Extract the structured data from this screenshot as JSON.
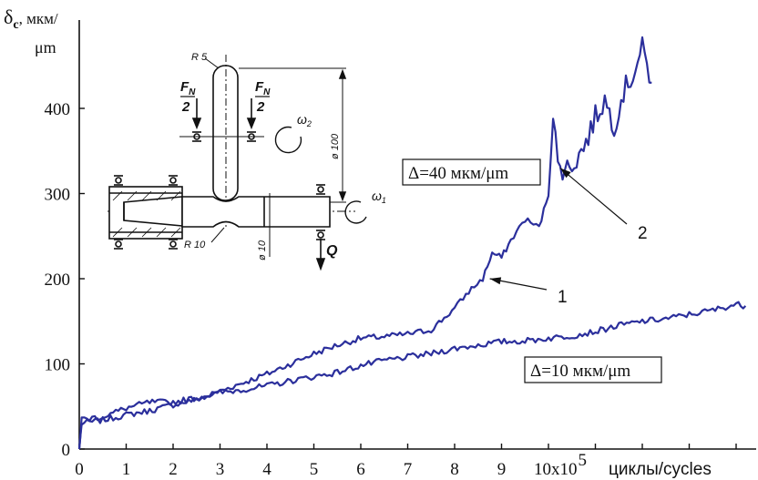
{
  "chart_data": {
    "type": "line",
    "ylabel": {
      "symbol": "δ",
      "subscript": "c",
      "unit_top": ", мкм/",
      "unit_bottom": "μm"
    },
    "xlabel": "циклы/cycles",
    "x_tick_labels": [
      "0",
      "1",
      "2",
      "3",
      "4",
      "5",
      "6",
      "7",
      "8",
      "9",
      "10x10"
    ],
    "x_power_label": "5",
    "xlim": [
      0,
      14.2
    ],
    "ylim": [
      0,
      470
    ],
    "y_ticks": [
      0,
      100,
      200,
      300,
      400
    ],
    "grid": false,
    "series": [
      {
        "name": "Δ=40 мкм/μm",
        "curve_label": "2",
        "color": "#2b2f9c",
        "x": [
          0,
          0.05,
          0.5,
          1,
          1.5,
          2,
          2.5,
          3,
          3.5,
          4,
          4.5,
          5,
          5.5,
          6,
          6.5,
          7,
          7.5,
          8,
          8.3,
          8.6,
          8.8,
          9.0,
          9.2,
          9.5,
          9.8,
          10.0,
          10.1,
          10.2,
          10.4,
          10.6,
          10.8,
          11.0,
          11.2,
          11.4,
          11.6,
          11.8,
          12.0,
          12.2
        ],
        "y": [
          0,
          30,
          34,
          40,
          45,
          52,
          58,
          68,
          78,
          88,
          100,
          112,
          122,
          130,
          132,
          135,
          140,
          165,
          185,
          200,
          230,
          225,
          245,
          270,
          260,
          300,
          400,
          330,
          330,
          340,
          360,
          390,
          410,
          380,
          420,
          440,
          470,
          430
        ]
      },
      {
        "name": "Δ=10 мкм/μm",
        "curve_label": "1",
        "color": "#2b2f9c",
        "x": [
          0,
          0.05,
          0.5,
          1,
          1.5,
          2,
          2.5,
          3,
          3.5,
          4,
          4.5,
          5,
          5.5,
          6,
          6.5,
          7,
          7.5,
          8,
          8.5,
          9,
          9.5,
          10,
          10.5,
          11,
          11.5,
          12,
          12.5,
          13,
          13.5,
          14,
          14.2
        ],
        "y": [
          0,
          35,
          38,
          48,
          55,
          55,
          60,
          66,
          70,
          74,
          80,
          85,
          90,
          98,
          104,
          108,
          112,
          118,
          122,
          126,
          127,
          130,
          133,
          138,
          145,
          150,
          153,
          158,
          163,
          170,
          168
        ]
      }
    ],
    "annotations": [
      {
        "text": "Δ=40 мкм/μm",
        "boxed": true
      },
      {
        "text": "Δ=10 мкм/μm",
        "boxed": true
      },
      {
        "text": "1",
        "points_to": [
          8.75,
          200
        ]
      },
      {
        "text": "2",
        "points_to": [
          10.25,
          330
        ]
      }
    ],
    "inset_diagram": {
      "labels": [
        "R 5",
        "F",
        "N",
        "2",
        "F",
        "N",
        "2",
        "ω",
        "2",
        "ω",
        "1",
        "ø 100",
        "ø 10",
        "R 10",
        "Q"
      ]
    }
  }
}
